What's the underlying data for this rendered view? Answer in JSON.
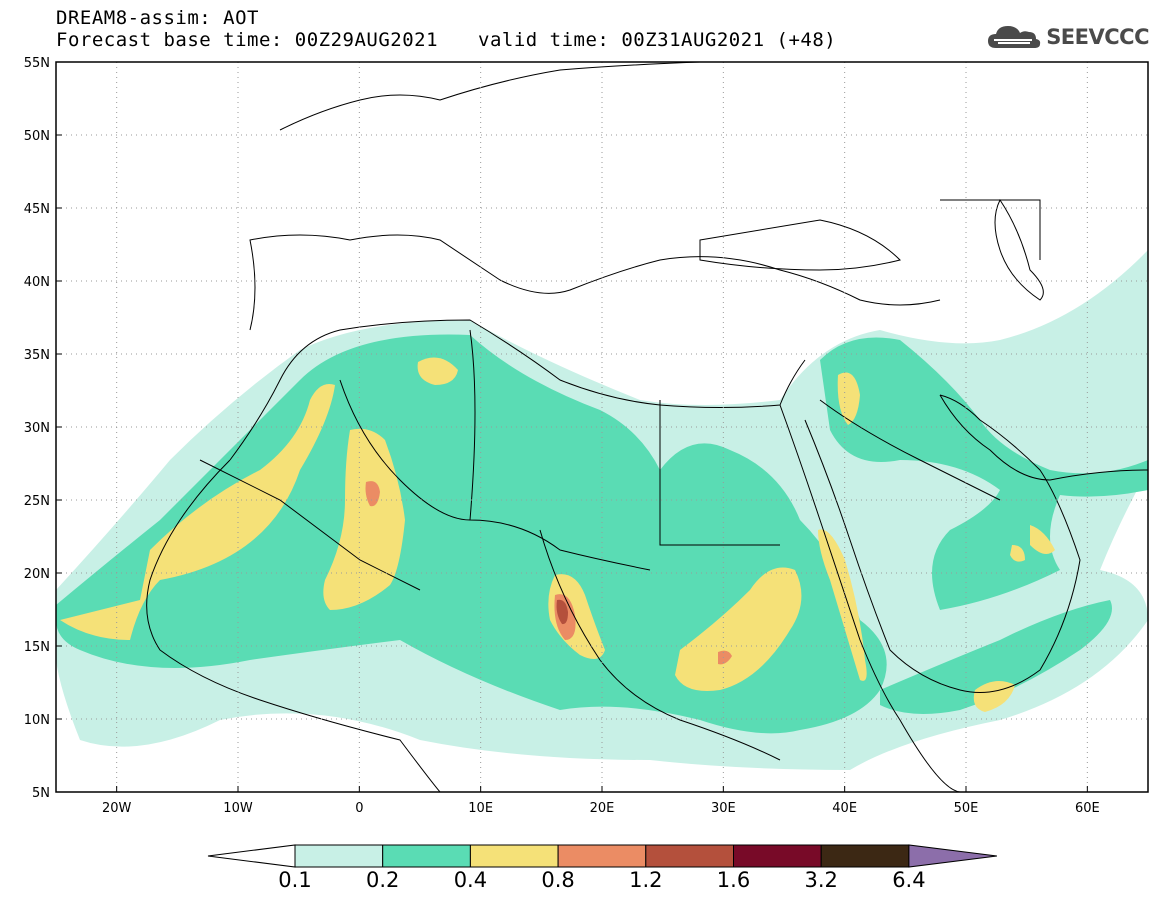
{
  "header": {
    "line1": "DREAM8-assim: AOT",
    "base_time": "Forecast base time: 00Z29AUG2021",
    "valid_time": "valid time: 00Z31AUG2021 (+48)"
  },
  "logo": {
    "text": "SEEVCCC",
    "icon": "cloud-icon"
  },
  "map": {
    "lat_range": [
      5,
      55
    ],
    "lon_range": [
      -25,
      65
    ],
    "lat_labels": [
      "55N",
      "50N",
      "45N",
      "40N",
      "35N",
      "30N",
      "25N",
      "20N",
      "15N",
      "10N",
      "5N"
    ],
    "lon_labels": [
      "20W",
      "10W",
      "0",
      "10E",
      "20E",
      "30E",
      "40E",
      "50E",
      "60E"
    ],
    "gridlines": "dotted"
  },
  "colorbar": {
    "thresholds": [
      "0.1",
      "0.2",
      "0.4",
      "0.8",
      "1.2",
      "1.6",
      "3.2",
      "6.4"
    ],
    "colors": [
      "#c8f0e6",
      "#5adcb4",
      "#f5e178",
      "#eb8c64",
      "#b4503c",
      "#780a28",
      "#3c2814",
      "#8c6eaa"
    ]
  }
}
